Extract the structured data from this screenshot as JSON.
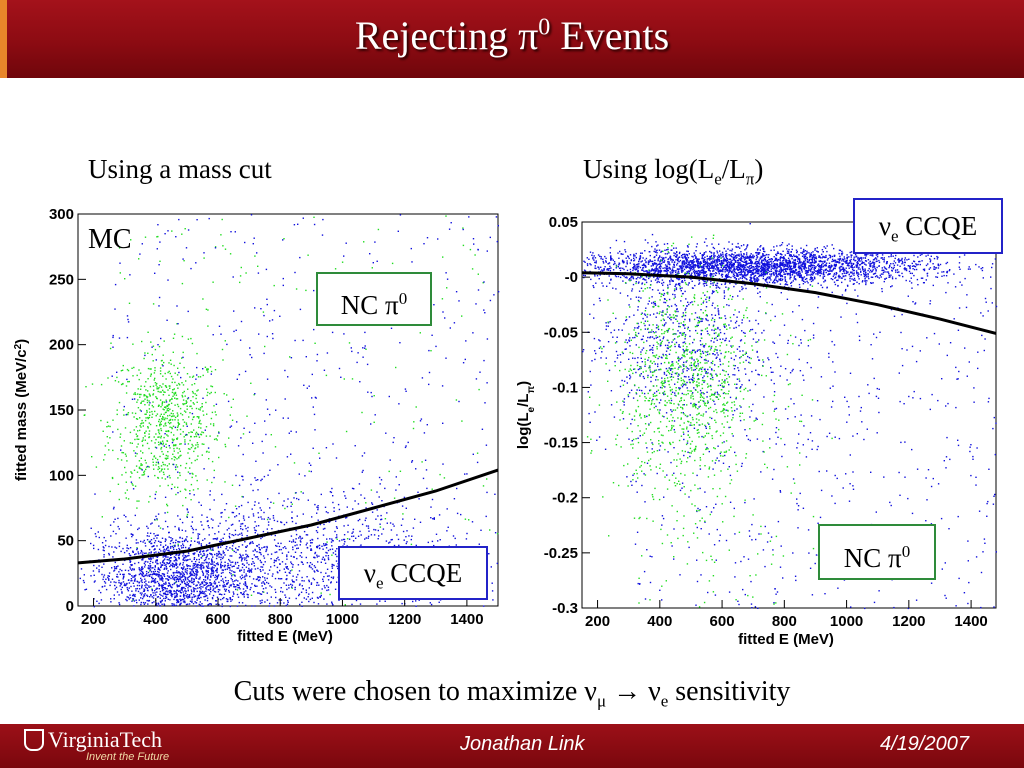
{
  "slide": {
    "title": "Rejecting π",
    "title_sup": "0",
    "title_tail": " Events",
    "left_heading": "Using a mass cut",
    "right_heading_pre": "Using log(L",
    "right_heading_sub1": "e",
    "right_heading_mid": "/L",
    "right_heading_sub2": "π",
    "right_heading_post": ")",
    "caption_pre": "Cuts were chosen to maximize ν",
    "caption_sub1": "μ",
    "caption_mid": " → ν",
    "caption_sub2": "e",
    "caption_post": " sensitivity",
    "footer_logo": "VirginiaTech",
    "footer_tagline": "Invent the Future",
    "footer_author": "Jonathan Link",
    "footer_date": "4/19/2007"
  },
  "labels": {
    "mc": "MC",
    "nc_pi0": "NC π",
    "nc_pi0_sup": "0",
    "nue_ccqe_nu": "ν",
    "nue_ccqe_sub": "e",
    "nue_ccqe_tail": " CCQE"
  },
  "colors": {
    "nc_pi0": "#22dd22",
    "nue_ccqe": "#1010dd",
    "cut": "#000000"
  },
  "chart_data": [
    {
      "type": "scatter",
      "title": "",
      "xlabel": "fitted E (MeV)",
      "ylabel_pre": "fitted mass (MeV/c",
      "ylabel_sup": "2",
      "ylabel_post": ")",
      "xlim": [
        150,
        1500
      ],
      "ylim": [
        0,
        300
      ],
      "xticks": [
        "200",
        "400",
        "600",
        "800",
        "1000",
        "1200",
        "1400"
      ],
      "yticks": [
        "0",
        "50",
        "100",
        "150",
        "200",
        "250",
        "300"
      ],
      "series": [
        {
          "name": "NC π0",
          "color": "#22dd22",
          "clusters": [
            {
              "cx": 430,
              "cy": 140,
              "sx": 90,
              "sy": 28,
              "n": 750
            }
          ],
          "uniform": {
            "x": [
              250,
              1500
            ],
            "y": [
              0,
              300
            ],
            "n": 180
          }
        },
        {
          "name": "νe CCQE",
          "color": "#1010dd",
          "clusters": [
            {
              "cx": 460,
              "cy": 22,
              "sx": 130,
              "sy": 18,
              "n": 1600
            },
            {
              "cx": 850,
              "cy": 35,
              "sx": 260,
              "sy": 25,
              "n": 1200
            }
          ],
          "uniform": {
            "x": [
              250,
              1500
            ],
            "y": [
              0,
              300
            ],
            "n": 500
          }
        }
      ],
      "cut_curve": {
        "x": [
          150,
          300,
          500,
          700,
          900,
          1100,
          1300,
          1500
        ],
        "y": [
          33,
          36,
          42,
          52,
          62,
          75,
          88,
          104
        ]
      }
    },
    {
      "type": "scatter",
      "title": "",
      "xlabel": "fitted E (MeV)",
      "ylabel_pre": "log(L",
      "ylabel_sub1": "e",
      "ylabel_mid": "/L",
      "ylabel_sub2": "π",
      "ylabel_post": ")",
      "xlim": [
        150,
        1480
      ],
      "ylim": [
        -0.3,
        0.05
      ],
      "xticks": [
        "200",
        "400",
        "600",
        "800",
        "1000",
        "1200",
        "1400"
      ],
      "yticks": [
        "0.05",
        "-0",
        "-0.05",
        "-0.1",
        "-0.15",
        "-0.2",
        "-0.25",
        "-0.3"
      ],
      "series": [
        {
          "name": "νe CCQE",
          "color": "#1010dd",
          "clusters": [
            {
              "cx": 700,
              "cy": 0.01,
              "sx": 280,
              "sy": 0.008,
              "n": 3000
            },
            {
              "cx": 450,
              "cy": -0.06,
              "sx": 150,
              "sy": 0.04,
              "n": 700
            }
          ],
          "uniform": {
            "x": [
              300,
              1480
            ],
            "y": [
              -0.3,
              0.02
            ],
            "n": 600
          }
        },
        {
          "name": "NC π0",
          "color": "#22dd22",
          "clusters": [
            {
              "cx": 480,
              "cy": -0.1,
              "sx": 110,
              "sy": 0.05,
              "n": 900
            }
          ],
          "uniform": {
            "x": [
              300,
              900
            ],
            "y": [
              -0.3,
              0.0
            ],
            "n": 150
          }
        }
      ],
      "cut_curve": {
        "x": [
          150,
          300,
          500,
          700,
          900,
          1100,
          1300,
          1480
        ],
        "y": [
          0.004,
          0.003,
          0.0,
          -0.006,
          -0.014,
          -0.025,
          -0.038,
          -0.051
        ]
      }
    }
  ]
}
